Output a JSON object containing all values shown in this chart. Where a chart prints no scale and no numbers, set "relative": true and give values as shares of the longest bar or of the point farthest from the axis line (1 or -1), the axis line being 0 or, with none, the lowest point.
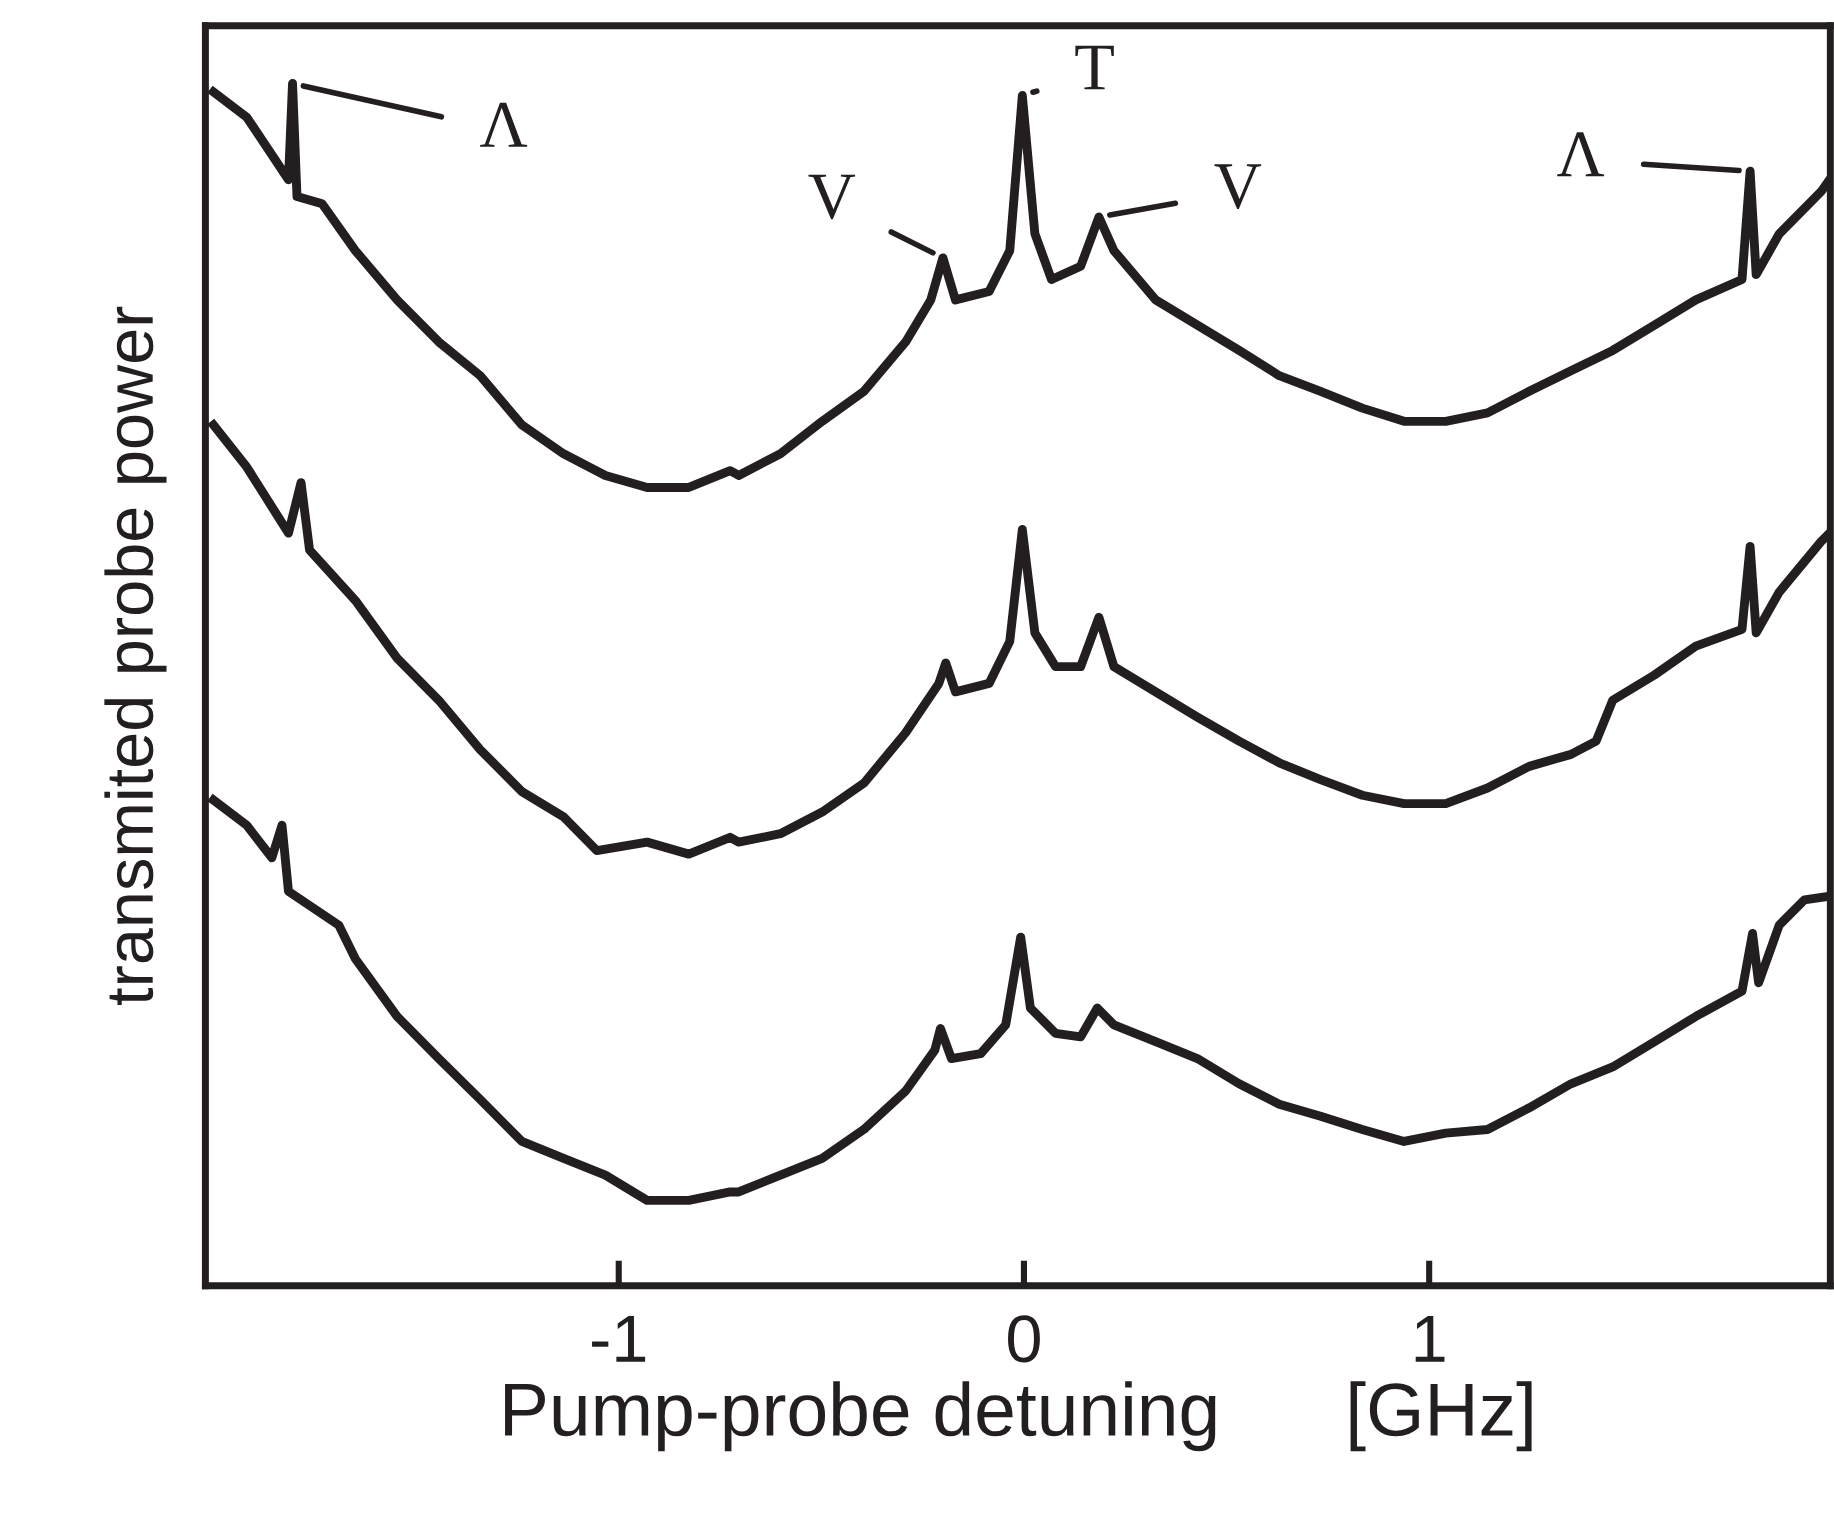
{
  "chart_data": {
    "type": "line",
    "relative": true,
    "xlabel": "Pump-probe detuning      [GHz]",
    "ylabel": "transmited probe power",
    "xlim": [
      -2.02,
      1.99
    ],
    "xticks": [
      {
        "value": -1,
        "label": "-1"
      },
      0,
      1
    ],
    "grid": false,
    "legend": false,
    "tick_labels": "x",
    "series": [
      {
        "color": "#231f20",
        "x": [
          -2.0,
          -1.918,
          -1.815,
          -1.805,
          -1.794,
          -1.732,
          -1.65,
          -1.547,
          -1.444,
          -1.342,
          -1.239,
          -1.136,
          -1.033,
          -0.93,
          -0.827,
          -0.725,
          -0.704,
          -0.601,
          -0.498,
          -0.395,
          -0.292,
          -0.23,
          -0.2,
          -0.169,
          -0.086,
          -0.035,
          -0.004,
          0.027,
          0.068,
          0.14,
          0.185,
          0.222,
          0.325,
          0.428,
          0.531,
          0.63,
          0.732,
          0.835,
          0.938,
          1.041,
          1.144,
          1.247,
          1.35,
          1.453,
          1.556,
          1.658,
          1.772,
          1.792,
          1.807,
          1.864,
          1.967,
          1.988
        ],
        "values": [
          0.993,
          0.972,
          0.92,
          1.0,
          0.906,
          0.9,
          0.861,
          0.82,
          0.785,
          0.757,
          0.716,
          0.692,
          0.674,
          0.664,
          0.664,
          0.678,
          0.674,
          0.692,
          0.719,
          0.744,
          0.785,
          0.82,
          0.855,
          0.82,
          0.827,
          0.861,
          0.99,
          0.875,
          0.837,
          0.848,
          0.889,
          0.861,
          0.82,
          0.799,
          0.778,
          0.757,
          0.744,
          0.73,
          0.719,
          0.719,
          0.726,
          0.744,
          0.761,
          0.778,
          0.799,
          0.82,
          0.837,
          0.927,
          0.841,
          0.875,
          0.91,
          0.92
        ]
      },
      {
        "color": "#231f20",
        "x": [
          -2.0,
          -1.918,
          -1.815,
          -1.784,
          -1.763,
          -1.65,
          -1.547,
          -1.444,
          -1.342,
          -1.239,
          -1.136,
          -1.054,
          -0.93,
          -0.827,
          -0.725,
          -0.704,
          -0.601,
          -0.498,
          -0.395,
          -0.292,
          -0.21,
          -0.193,
          -0.169,
          -0.086,
          -0.035,
          -0.004,
          0.027,
          0.078,
          0.14,
          0.185,
          0.222,
          0.325,
          0.428,
          0.531,
          0.63,
          0.732,
          0.835,
          0.938,
          1.041,
          1.144,
          1.247,
          1.35,
          1.412,
          1.453,
          1.556,
          1.658,
          1.772,
          1.792,
          1.807,
          1.864,
          1.967,
          1.988
        ],
        "values": [
          0.716,
          0.681,
          0.626,
          0.668,
          0.612,
          0.57,
          0.522,
          0.487,
          0.446,
          0.411,
          0.39,
          0.362,
          0.369,
          0.359,
          0.373,
          0.369,
          0.376,
          0.394,
          0.418,
          0.46,
          0.501,
          0.518,
          0.494,
          0.501,
          0.536,
          0.629,
          0.543,
          0.515,
          0.515,
          0.556,
          0.515,
          0.494,
          0.473,
          0.453,
          0.435,
          0.421,
          0.408,
          0.401,
          0.401,
          0.414,
          0.432,
          0.442,
          0.453,
          0.487,
          0.508,
          0.532,
          0.546,
          0.615,
          0.543,
          0.577,
          0.619,
          0.626
        ]
      },
      {
        "color": "#231f20",
        "x": [
          -2.0,
          -1.918,
          -1.856,
          -1.831,
          -1.815,
          -1.691,
          -1.65,
          -1.547,
          -1.444,
          -1.342,
          -1.239,
          -1.136,
          -1.033,
          -0.93,
          -0.827,
          -0.725,
          -0.704,
          -0.601,
          -0.498,
          -0.395,
          -0.292,
          -0.22,
          -0.206,
          -0.179,
          -0.107,
          -0.045,
          -0.008,
          0.016,
          0.078,
          0.14,
          0.181,
          0.222,
          0.325,
          0.428,
          0.531,
          0.63,
          0.732,
          0.835,
          0.938,
          1.041,
          1.144,
          1.247,
          1.35,
          1.453,
          1.556,
          1.658,
          1.772,
          1.798,
          1.813,
          1.864,
          1.926,
          1.988
        ],
        "values": [
          0.404,
          0.383,
          0.356,
          0.383,
          0.328,
          0.3,
          0.272,
          0.224,
          0.189,
          0.155,
          0.12,
          0.106,
          0.092,
          0.071,
          0.071,
          0.078,
          0.078,
          0.092,
          0.106,
          0.13,
          0.162,
          0.196,
          0.214,
          0.189,
          0.193,
          0.217,
          0.29,
          0.231,
          0.21,
          0.207,
          0.231,
          0.217,
          0.203,
          0.189,
          0.168,
          0.151,
          0.141,
          0.13,
          0.12,
          0.127,
          0.13,
          0.148,
          0.168,
          0.182,
          0.203,
          0.224,
          0.245,
          0.293,
          0.252,
          0.3,
          0.321,
          0.324
        ]
      }
    ],
    "annotations": [
      {
        "text": "Λ",
        "x": -1.805,
        "y": 1.0
      },
      {
        "text": "V",
        "x": -0.2,
        "y": 0.855
      },
      {
        "text": "T",
        "x": -0.004,
        "y": 0.99
      },
      {
        "text": "V",
        "x": 0.185,
        "y": 0.889
      },
      {
        "text": "Λ",
        "x": 1.792,
        "y": 0.927
      }
    ]
  }
}
